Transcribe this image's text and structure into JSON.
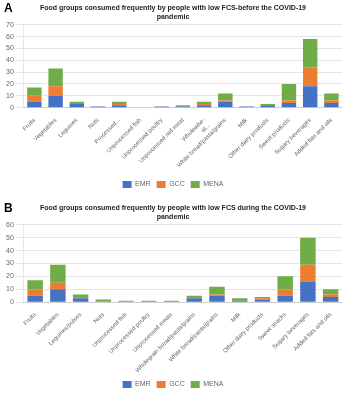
{
  "chart_data": [
    {
      "type": "bar",
      "title": "Food groups consumed frequently by people with low FCS-before the COVID-19\npandemic",
      "annotations": [
        "A"
      ],
      "categories": [
        "Fruits",
        "Vegetables",
        "Legumes",
        "Nuts",
        "Processed...",
        "Unprocessed fish",
        "Unprocessed poultry",
        "Unprocessed red meat",
        "Wholewhe-\nat...",
        "White bread/pasta/grains",
        "Milk",
        "Other dairy products",
        "Sweet products",
        "Sugary beverages",
        "Added fats and oils"
      ],
      "series": [
        {
          "name": "EMR",
          "color": "#4472c4",
          "values": [
            5,
            10,
            3,
            1,
            2,
            0,
            1,
            1,
            2,
            5,
            1,
            2,
            4,
            18,
            4
          ]
        },
        {
          "name": "GCC",
          "color": "#ed7d31",
          "values": [
            5,
            8,
            0,
            0,
            1,
            0,
            0,
            0,
            1,
            1,
            0,
            0,
            2,
            16,
            2
          ]
        },
        {
          "name": "MENA",
          "color": "#70ad47",
          "values": [
            7,
            15,
            2,
            0,
            2,
            0,
            0,
            1,
            2,
            6,
            0,
            1,
            14,
            24,
            6
          ]
        }
      ],
      "stacked": true,
      "ylim": [
        0,
        70
      ],
      "yticks": [
        0,
        10,
        20,
        30,
        40,
        50,
        60,
        70
      ],
      "grid": true,
      "legend": "bottom"
    },
    {
      "type": "bar",
      "title": "Food groups consumed frequently by people with low FCS during the COVID-19\npandemic",
      "annotations": [
        "B"
      ],
      "categories": [
        "Fruits",
        "Vegetables",
        "Legumes/pulses",
        "Nuts",
        "Unprocessed fish",
        "Unprocessed poultry",
        "Unprocessed meats",
        "Wholegrain bread/pasta/grains",
        "White bread/pasta/grains",
        "Milk",
        "Other dairy products",
        "Sweet snacks",
        "Sugary beverages",
        "Added fats and oils"
      ],
      "series": [
        {
          "name": "EMR",
          "color": "#4472c4",
          "values": [
            5,
            10,
            3,
            0,
            0,
            0,
            0,
            3,
            5,
            1,
            2,
            5,
            16,
            4
          ]
        },
        {
          "name": "GCC",
          "color": "#ed7d31",
          "values": [
            5,
            5,
            1,
            0,
            0,
            0,
            0,
            1,
            1,
            0,
            1,
            5,
            13,
            2
          ]
        },
        {
          "name": "MENA",
          "color": "#70ad47",
          "values": [
            7,
            14,
            2,
            2,
            1,
            1,
            1,
            1,
            6,
            2,
            1,
            10,
            21,
            4
          ]
        }
      ],
      "stacked": true,
      "ylim": [
        0,
        60
      ],
      "yticks": [
        0,
        10,
        20,
        30,
        40,
        50,
        60
      ],
      "grid": true,
      "legend": "bottom"
    }
  ]
}
